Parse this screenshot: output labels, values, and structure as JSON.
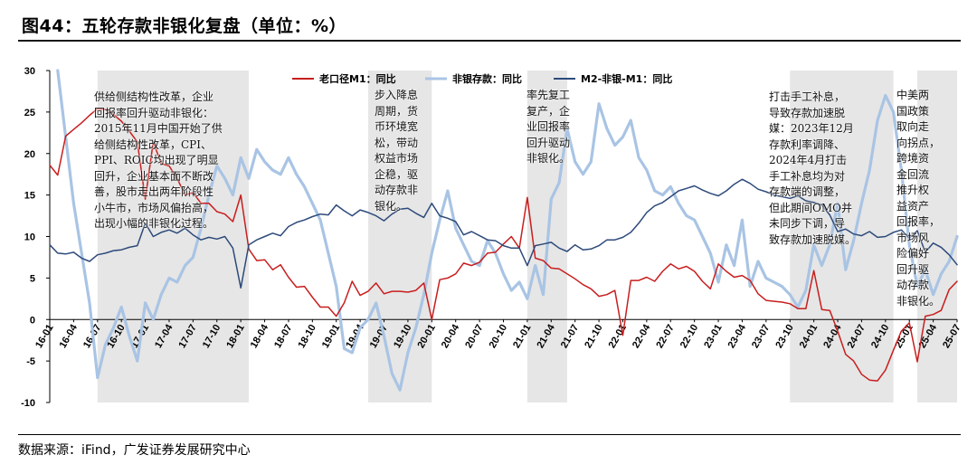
{
  "figure": {
    "title": "图44：五轮存款非银化复盘（单位：%）",
    "source": "数据来源：iFind，广发证券发展研究中心"
  },
  "colors": {
    "series_old_m1": "#c81e1e",
    "series_nonbank": "#a9c4e4",
    "series_m2_m1": "#2d4a7a",
    "shade": "#e6e6e6"
  },
  "annotations": [
    "供给侧结构性改革，企业\n回报率回升驱动非银化：\n2015年11月中国开始了供\n给侧结构性改革，CPI、\nPPI、ROIC均出现了明显\n回升，企业基本面不断改\n善，股市走出两年阶段性\n小牛市，市场风偏抬高，\n出现小幅的非银化过程。",
    "步入降息\n周期，货\n币环境宽\n松，带动\n权益市场\n企稳，驱\n动存款非\n银化。",
    "率先复工\n复产，企\n业回报率\n回升驱动\n非银化。",
    "打击手工补息，\n导致存款加速脱\n媒：2023年12月\n存款利率调降、\n2024年4月打击\n手工补息均为对\n存款端的调整，\n但此期间OMO并\n未同步下调，导\n致存款加速脱媒。",
    "中美两\n国政策\n取向走\n向拐点，\n跨境资\n金回流\n推升权\n益资产\n回报率，\n市场风\n险偏好\n回升驱\n动存款\n非银化。"
  ],
  "chart_data": {
    "type": "line",
    "title": "",
    "xlabel": "",
    "ylabel": "",
    "ylim": [
      -10,
      30
    ],
    "yticks": [
      -10,
      -5,
      0,
      5,
      10,
      15,
      20,
      25,
      30
    ],
    "xlim": [
      "2016-01",
      "2025-07"
    ],
    "xticks": [
      "16-01",
      "16-04",
      "16-07",
      "16-10",
      "17-01",
      "17-04",
      "17-07",
      "17-10",
      "18-01",
      "18-04",
      "18-07",
      "18-10",
      "19-01",
      "19-04",
      "19-07",
      "19-10",
      "20-01",
      "20-04",
      "20-07",
      "20-10",
      "21-01",
      "21-04",
      "21-07",
      "21-10",
      "22-01",
      "22-04",
      "22-07",
      "22-10",
      "23-01",
      "23-04",
      "23-07",
      "23-10",
      "24-01",
      "24-04",
      "24-07",
      "24-10",
      "25-01",
      "25-04",
      "25-07"
    ],
    "legend_position": "top-center",
    "grid": false,
    "shaded_periods": [
      [
        "2016-07",
        "2018-02"
      ],
      [
        "2019-05",
        "2020-01"
      ],
      [
        "2021-01",
        "2021-06"
      ],
      [
        "2023-10",
        "2024-11"
      ],
      [
        "2025-02",
        "2025-07"
      ]
    ],
    "series": [
      {
        "name": "老口径M1：同比",
        "x": [
          "2016-01",
          "2016-02",
          "2016-03",
          "2016-04",
          "2016-05",
          "2016-06",
          "2016-07",
          "2016-08",
          "2016-09",
          "2016-10",
          "2016-11",
          "2016-12",
          "2017-01",
          "2017-02",
          "2017-03",
          "2017-04",
          "2017-05",
          "2017-06",
          "2017-07",
          "2017-08",
          "2017-09",
          "2017-10",
          "2017-11",
          "2017-12",
          "2018-01",
          "2018-02",
          "2018-03",
          "2018-04",
          "2018-05",
          "2018-06",
          "2018-07",
          "2018-08",
          "2018-09",
          "2018-10",
          "2018-11",
          "2018-12",
          "2019-01",
          "2019-02",
          "2019-03",
          "2019-04",
          "2019-05",
          "2019-06",
          "2019-07",
          "2019-08",
          "2019-09",
          "2019-10",
          "2019-11",
          "2019-12",
          "2020-01",
          "2020-02",
          "2020-03",
          "2020-04",
          "2020-05",
          "2020-06",
          "2020-07",
          "2020-08",
          "2020-09",
          "2020-10",
          "2020-11",
          "2020-12",
          "2021-01",
          "2021-02",
          "2021-03",
          "2021-04",
          "2021-05",
          "2021-06",
          "2021-07",
          "2021-08",
          "2021-09",
          "2021-10",
          "2021-11",
          "2021-12",
          "2022-01",
          "2022-02",
          "2022-03",
          "2022-04",
          "2022-05",
          "2022-06",
          "2022-07",
          "2022-08",
          "2022-09",
          "2022-10",
          "2022-11",
          "2022-12",
          "2023-01",
          "2023-02",
          "2023-03",
          "2023-04",
          "2023-05",
          "2023-06",
          "2023-07",
          "2023-08",
          "2023-09",
          "2023-10",
          "2023-11",
          "2023-12",
          "2024-01",
          "2024-02",
          "2024-03",
          "2024-04",
          "2024-05",
          "2024-06",
          "2024-07",
          "2024-08",
          "2024-09",
          "2024-10",
          "2024-11",
          "2024-12",
          "2025-01",
          "2025-02",
          "2025-03",
          "2025-04",
          "2025-05",
          "2025-06",
          "2025-07"
        ],
        "y": [
          18.6,
          17.4,
          22.1,
          22.9,
          23.7,
          24.6,
          25.4,
          25.3,
          24.7,
          23.9,
          22.7,
          21.4,
          14.5,
          21.4,
          18.8,
          18.5,
          17.0,
          15.0,
          15.3,
          14.0,
          14.0,
          13.0,
          12.7,
          11.8,
          15.0,
          8.5,
          7.1,
          7.2,
          6.0,
          6.6,
          5.1,
          3.9,
          4.0,
          2.7,
          1.5,
          1.5,
          0.4,
          2.0,
          4.6,
          2.9,
          3.4,
          4.4,
          3.1,
          3.4,
          3.4,
          3.3,
          3.5,
          4.4,
          0.0,
          4.8,
          5.0,
          5.5,
          6.8,
          6.5,
          6.9,
          8.0,
          8.1,
          9.1,
          10.0,
          8.6,
          14.7,
          7.4,
          7.1,
          6.2,
          6.1,
          5.5,
          4.9,
          4.2,
          3.7,
          2.8,
          3.0,
          3.5,
          -1.9,
          4.7,
          4.7,
          5.1,
          4.6,
          5.8,
          6.7,
          6.1,
          6.4,
          5.8,
          4.6,
          3.7,
          6.7,
          5.8,
          5.1,
          5.3,
          4.7,
          3.1,
          2.3,
          2.2,
          2.1,
          1.9,
          1.3,
          1.3,
          5.9,
          1.2,
          1.1,
          -1.4,
          -4.2,
          -5.0,
          -6.6,
          -7.3,
          -7.4,
          -6.1,
          -3.7,
          -1.4,
          -0.4,
          -5.1,
          0.4,
          0.6,
          1.1,
          3.6,
          4.6
        ]
      },
      {
        "name": "非银存款：同比",
        "x": [
          "2016-02",
          "2016-03",
          "2016-04",
          "2016-05",
          "2016-06",
          "2016-07",
          "2016-08",
          "2016-09",
          "2016-10",
          "2016-11",
          "2016-12",
          "2017-01",
          "2017-02",
          "2017-03",
          "2017-04",
          "2017-05",
          "2017-06",
          "2017-07",
          "2017-08",
          "2017-09",
          "2017-10",
          "2017-11",
          "2017-12",
          "2018-01",
          "2018-02",
          "2018-03",
          "2018-04",
          "2018-05",
          "2018-06",
          "2018-07",
          "2018-08",
          "2018-09",
          "2018-10",
          "2018-11",
          "2018-12",
          "2019-01",
          "2019-02",
          "2019-03",
          "2019-04",
          "2019-05",
          "2019-06",
          "2019-07",
          "2019-08",
          "2019-09",
          "2019-10",
          "2019-11",
          "2019-12",
          "2020-01",
          "2020-02",
          "2020-03",
          "2020-04",
          "2020-05",
          "2020-06",
          "2020-07",
          "2020-08",
          "2020-09",
          "2020-10",
          "2020-11",
          "2020-12",
          "2021-01",
          "2021-02",
          "2021-03",
          "2021-04",
          "2021-05",
          "2021-06",
          "2021-07",
          "2021-08",
          "2021-09",
          "2021-10",
          "2021-11",
          "2021-12",
          "2022-01",
          "2022-02",
          "2022-03",
          "2022-04",
          "2022-05",
          "2022-06",
          "2022-07",
          "2022-08",
          "2022-09",
          "2022-10",
          "2022-11",
          "2022-12",
          "2023-01",
          "2023-02",
          "2023-03",
          "2023-04",
          "2023-05",
          "2023-06",
          "2023-07",
          "2023-08",
          "2023-09",
          "2023-10",
          "2023-11",
          "2023-12",
          "2024-01",
          "2024-02",
          "2024-03",
          "2024-04",
          "2024-05",
          "2024-06",
          "2024-07",
          "2024-08",
          "2024-09",
          "2024-10",
          "2024-11",
          "2024-12",
          "2025-01",
          "2025-02",
          "2025-03",
          "2025-04",
          "2025-05",
          "2025-06",
          "2025-07"
        ],
        "y": [
          30.0,
          22.0,
          14.0,
          8.0,
          2.0,
          -7.0,
          -3.0,
          -1.0,
          1.5,
          -2.0,
          -5.0,
          2.0,
          0.0,
          3.0,
          5.0,
          4.5,
          6.5,
          7.5,
          11.0,
          15.0,
          18.5,
          17.0,
          15.0,
          19.5,
          17.0,
          20.5,
          19.0,
          18.0,
          17.5,
          19.5,
          17.5,
          16.0,
          14.0,
          12.0,
          8.0,
          4.0,
          -3.5,
          -4.0,
          -1.0,
          0.0,
          2.0,
          -2.0,
          -6.5,
          -8.5,
          -4.0,
          -1.0,
          3.0,
          8.0,
          12.0,
          15.5,
          11.0,
          9.0,
          7.0,
          6.5,
          9.5,
          8.0,
          5.5,
          3.5,
          4.5,
          2.5,
          6.5,
          3.0,
          14.5,
          16.5,
          23.0,
          19.0,
          17.5,
          19.0,
          26.0,
          23.0,
          21.0,
          22.0,
          24.0,
          19.5,
          18.0,
          15.5,
          15.0,
          16.0,
          14.0,
          12.5,
          12.0,
          10.0,
          8.0,
          4.5,
          9.0,
          6.5,
          12.0,
          4.0,
          7.0,
          5.0,
          4.5,
          4.0,
          3.0,
          1.5,
          3.5,
          9.0,
          6.5,
          9.0,
          14.0,
          6.0,
          9.5,
          14.0,
          18.0,
          24.0,
          27.0,
          25.0,
          18.0,
          9.0,
          4.0,
          6.0,
          3.0,
          5.5,
          7.0,
          10.0
        ]
      },
      {
        "name": "M2-非银-M1：同比",
        "x": [
          "2016-01",
          "2016-02",
          "2016-03",
          "2016-04",
          "2016-05",
          "2016-06",
          "2016-07",
          "2016-08",
          "2016-09",
          "2016-10",
          "2016-11",
          "2016-12",
          "2017-01",
          "2017-02",
          "2017-03",
          "2017-04",
          "2017-05",
          "2017-06",
          "2017-07",
          "2017-08",
          "2017-09",
          "2017-10",
          "2017-11",
          "2017-12",
          "2018-01",
          "2018-02",
          "2018-03",
          "2018-04",
          "2018-05",
          "2018-06",
          "2018-07",
          "2018-08",
          "2018-09",
          "2018-10",
          "2018-11",
          "2018-12",
          "2019-01",
          "2019-02",
          "2019-03",
          "2019-04",
          "2019-05",
          "2019-06",
          "2019-07",
          "2019-08",
          "2019-09",
          "2019-10",
          "2019-11",
          "2019-12",
          "2020-01",
          "2020-02",
          "2020-03",
          "2020-04",
          "2020-05",
          "2020-06",
          "2020-07",
          "2020-08",
          "2020-09",
          "2020-10",
          "2020-11",
          "2020-12",
          "2021-01",
          "2021-02",
          "2021-03",
          "2021-04",
          "2021-05",
          "2021-06",
          "2021-07",
          "2021-08",
          "2021-09",
          "2021-10",
          "2021-11",
          "2021-12",
          "2022-01",
          "2022-02",
          "2022-03",
          "2022-04",
          "2022-05",
          "2022-06",
          "2022-07",
          "2022-08",
          "2022-09",
          "2022-10",
          "2022-11",
          "2022-12",
          "2023-01",
          "2023-02",
          "2023-03",
          "2023-04",
          "2023-05",
          "2023-06",
          "2023-07",
          "2023-08",
          "2023-09",
          "2023-10",
          "2023-11",
          "2023-12",
          "2024-01",
          "2024-02",
          "2024-03",
          "2024-04",
          "2024-05",
          "2024-06",
          "2024-07",
          "2024-08",
          "2024-09",
          "2024-10",
          "2024-11",
          "2024-12",
          "2025-01",
          "2025-02",
          "2025-03",
          "2025-04",
          "2025-05",
          "2025-06",
          "2025-07"
        ],
        "y": [
          9.0,
          8.0,
          7.9,
          8.1,
          7.4,
          7.0,
          7.8,
          8.0,
          8.3,
          8.4,
          8.7,
          8.9,
          11.6,
          10.0,
          10.5,
          10.8,
          10.4,
          11.0,
          10.2,
          9.6,
          9.9,
          9.7,
          10.0,
          8.6,
          3.8,
          9.0,
          9.6,
          10.0,
          10.4,
          10.1,
          11.2,
          11.7,
          12.0,
          12.4,
          12.7,
          12.6,
          13.8,
          13.1,
          12.5,
          13.2,
          12.9,
          12.5,
          11.9,
          12.7,
          13.3,
          13.4,
          12.8,
          12.3,
          14.0,
          12.5,
          12.2,
          11.8,
          10.2,
          10.6,
          10.1,
          9.6,
          9.5,
          8.9,
          8.6,
          8.6,
          6.5,
          8.9,
          9.1,
          9.3,
          8.6,
          8.2,
          9.0,
          8.4,
          8.5,
          8.9,
          9.6,
          9.6,
          9.9,
          10.5,
          11.6,
          12.9,
          13.7,
          14.1,
          14.8,
          15.5,
          15.8,
          16.1,
          15.6,
          15.2,
          14.9,
          15.5,
          16.3,
          16.9,
          16.4,
          15.7,
          15.4,
          15.0,
          14.8,
          14.6,
          14.9,
          14.3,
          14.1,
          13.8,
          12.6,
          10.6,
          10.9,
          10.3,
          10.1,
          10.6,
          9.9,
          10.0,
          10.5,
          10.8,
          9.8,
          10.7,
          8.1,
          9.2,
          8.7,
          7.8,
          6.6
        ]
      }
    ]
  }
}
